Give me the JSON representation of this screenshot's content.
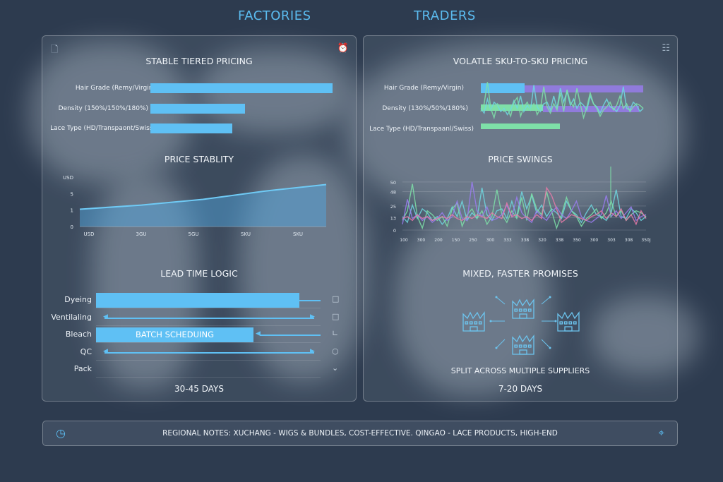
{
  "header": {
    "left_title": "FACTORIES",
    "right_title": "TRADERS"
  },
  "factories": {
    "tiered_title": "STABLE TIERED PRICING",
    "tiered_bars": [
      {
        "label": "Hair Grade (Remy/Virgin)",
        "value": 100
      },
      {
        "label": "Density (150%/150%/180%)",
        "value": 52
      },
      {
        "label": "Lace Type (HD/Transpaont/Swiss)",
        "value": 45
      }
    ],
    "stability_title": "PRICE STABLITY",
    "lead_title": "LEAD TIME LOGIC",
    "lead_rows": [
      "Dyeing",
      "Ventilaling",
      "Bleach",
      "QC",
      "Pack"
    ],
    "batch_label": "BATCH SCHEDUING",
    "days": "30-45 DAYS"
  },
  "traders": {
    "volatile_title": "VOLATLE SKU-TO-SKU PRICING",
    "volatile_labels": [
      "Hair Grade (Remy/Virgin)",
      "Density (130%/50%/180%)",
      "Lace Type (HD/Transpaanl/Swiss)"
    ],
    "swings_title": "PRICE SWINGS",
    "promises_title": "MIXED, FASTER PROMISES",
    "split_label": "SPLIT ACROSS MULTIPLE SUPPLIERS",
    "days": "7-20 DAYS"
  },
  "footer": {
    "text": "REGIONAL NOTES: XUCHANG - WIGS & BUNDLES, COST-EFFECTIVE. QINGAO - LACE PRODUCTS, HIGH-END"
  },
  "colors": {
    "accent": "#5fc0f4",
    "green": "#7ee0a8",
    "purple": "#9a7cf0",
    "pink": "#e87aa8",
    "teal": "#6fd8e0"
  },
  "icons": [
    "document-icon",
    "alarm-clock-icon",
    "layout-icon",
    "clock-icon",
    "network-icon",
    "factory-icon"
  ],
  "chart_data": [
    {
      "type": "area",
      "title": "PRICE STABLITY",
      "y_ticks": [
        "0",
        "1",
        "5",
        "USD"
      ],
      "x_ticks": [
        "USD",
        "3GU",
        "5GU",
        "SKU",
        "SKU"
      ],
      "values": [
        1.05,
        1.3,
        1.65,
        2.15,
        2.55
      ],
      "ylim": [
        0,
        3
      ],
      "grid": false
    },
    {
      "type": "line",
      "title": "PRICE SWINGS",
      "y_ticks": [
        "0",
        "13",
        "25",
        "48",
        "50"
      ],
      "ylim": [
        0,
        55
      ],
      "x_ticks": [
        "100",
        "300",
        "200",
        "150",
        "250",
        "300",
        "333",
        "338",
        "320",
        "338",
        "350",
        "300",
        "303",
        "308",
        "350J"
      ],
      "grid": true,
      "series": [
        {
          "color": "#6fd8e0",
          "values": [
            14,
            8,
            26,
            12,
            22,
            18,
            10,
            14,
            6,
            12,
            24,
            14,
            30,
            10,
            18,
            12,
            44,
            16,
            10,
            20,
            22,
            12,
            30,
            14,
            40,
            22,
            36,
            18,
            26,
            14,
            22,
            18,
            12,
            30,
            20,
            16,
            8,
            18,
            26,
            16,
            14,
            10,
            18,
            42,
            14,
            12,
            22,
            18,
            10,
            14
          ]
        },
        {
          "color": "#7ee0a8",
          "values": [
            10,
            20,
            48,
            14,
            2,
            20,
            16,
            10,
            14,
            4,
            22,
            28,
            4,
            16,
            22,
            12,
            20,
            6,
            14,
            42,
            16,
            8,
            20,
            12,
            34,
            10,
            38,
            22,
            16,
            40,
            20,
            2,
            16,
            34,
            20,
            14,
            4,
            12,
            16,
            22,
            12,
            18,
            30,
            14,
            20,
            10,
            16,
            20,
            18,
            14
          ]
        },
        {
          "color": "#9a7cf0",
          "values": [
            6,
            32,
            12,
            16,
            10,
            14,
            8,
            12,
            18,
            10,
            14,
            30,
            12,
            10,
            50,
            20,
            14,
            24,
            10,
            12,
            16,
            26,
            14,
            34,
            18,
            12,
            8,
            20,
            14,
            10,
            18,
            24,
            16,
            12,
            20,
            30,
            14,
            10,
            8,
            12,
            16,
            36,
            14,
            20,
            12,
            18,
            24,
            10,
            14,
            16
          ]
        },
        {
          "color": "#e87aa8",
          "values": [
            12,
            14,
            10,
            16,
            12,
            14,
            10,
            12,
            14,
            12,
            16,
            12,
            10,
            14,
            12,
            16,
            14,
            12,
            18,
            14,
            12,
            28,
            14,
            16,
            12,
            14,
            10,
            16,
            12,
            44,
            36,
            22,
            8,
            12,
            16,
            14,
            12,
            10,
            14,
            16,
            20,
            12,
            18,
            14,
            22,
            10,
            16,
            6,
            20,
            12
          ]
        }
      ]
    }
  ]
}
